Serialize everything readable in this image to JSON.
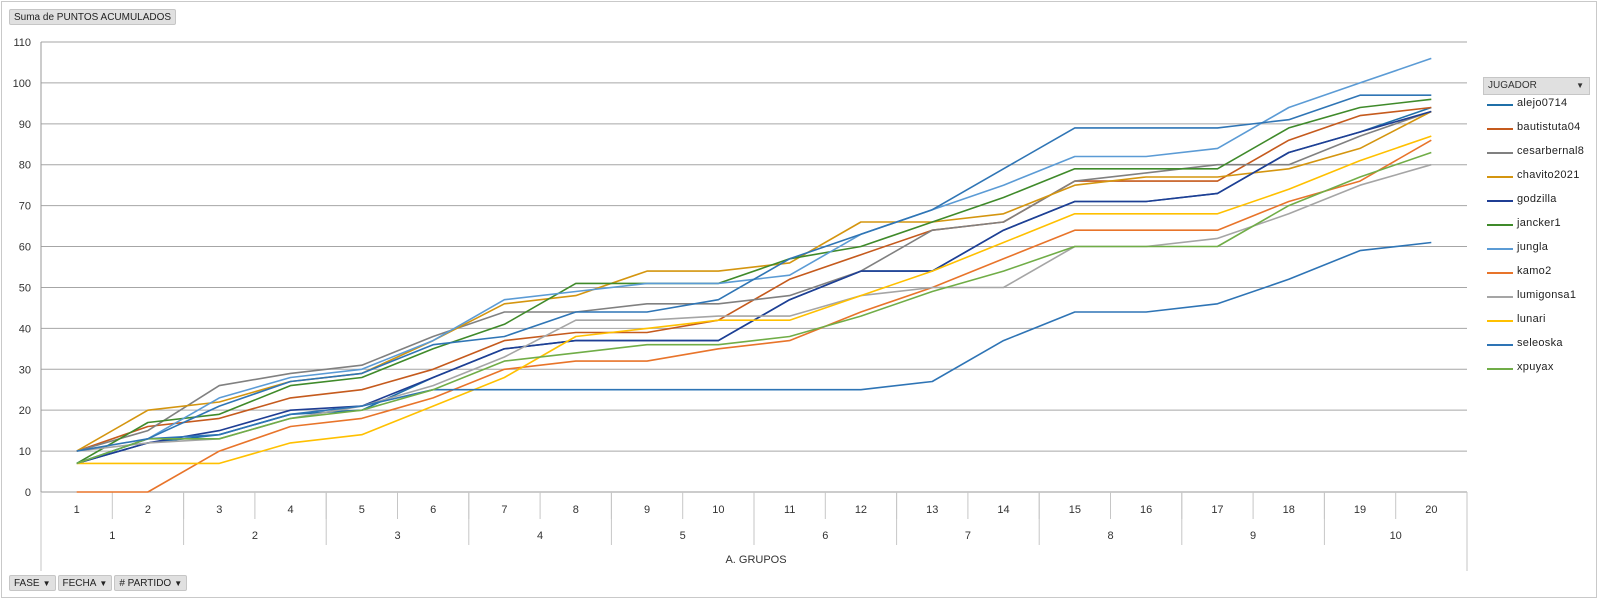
{
  "value_field": "Suma de PUNTOS ACUMULADOS",
  "legend_field": "JUGADOR",
  "filters": [
    {
      "label": "FASE",
      "icon": "filter-icon"
    },
    {
      "label": "FECHA",
      "icon": "chevron-down-icon"
    },
    {
      "label": "# PARTIDO",
      "icon": "chevron-down-icon"
    }
  ],
  "chart_data": {
    "type": "line",
    "title": "",
    "xlabel": "",
    "ylabel": "",
    "ylim": [
      0,
      110
    ],
    "yticks": [
      0,
      10,
      20,
      30,
      40,
      50,
      60,
      70,
      80,
      90,
      100,
      110
    ],
    "grid": true,
    "legend_position": "right",
    "categories": [
      "1",
      "2",
      "3",
      "4",
      "5",
      "6",
      "7",
      "8",
      "9",
      "10",
      "11",
      "12",
      "13",
      "14",
      "15",
      "16",
      "17",
      "18",
      "19",
      "20"
    ],
    "fecha_groups": [
      {
        "label": "1",
        "span": 2
      },
      {
        "label": "2",
        "span": 2
      },
      {
        "label": "3",
        "span": 2
      },
      {
        "label": "4",
        "span": 2
      },
      {
        "label": "5",
        "span": 2
      },
      {
        "label": "6",
        "span": 2
      },
      {
        "label": "7",
        "span": 2
      },
      {
        "label": "8",
        "span": 2
      },
      {
        "label": "9",
        "span": 2
      },
      {
        "label": "10",
        "span": 2
      }
    ],
    "fase_label": "A. GRUPOS",
    "series": [
      {
        "name": "alejo0714",
        "color": "#1f6fa8",
        "values": [
          7,
          12,
          14,
          19,
          20,
          28,
          35,
          37,
          37,
          37,
          47,
          54,
          54,
          64,
          71,
          71,
          73,
          83,
          88,
          94
        ]
      },
      {
        "name": "bautistuta04",
        "color": "#c55a1d",
        "values": [
          10,
          16,
          18,
          23,
          25,
          30,
          37,
          39,
          39,
          42,
          52,
          58,
          64,
          66,
          76,
          76,
          76,
          86,
          92,
          94
        ]
      },
      {
        "name": "cesarbernal8",
        "color": "#808080",
        "values": [
          10,
          15,
          26,
          29,
          31,
          38,
          44,
          44,
          46,
          46,
          48,
          54,
          64,
          66,
          76,
          78,
          80,
          80,
          87,
          93
        ]
      },
      {
        "name": "chavito2021",
        "color": "#d4950f",
        "values": [
          10,
          20,
          22,
          27,
          29,
          37,
          46,
          48,
          54,
          54,
          56,
          66,
          66,
          68,
          75,
          77,
          77,
          79,
          84,
          93
        ]
      },
      {
        "name": "godzilla",
        "color": "#1f3e94",
        "values": [
          7,
          12,
          15,
          20,
          21,
          28,
          35,
          37,
          37,
          37,
          47,
          54,
          54,
          64,
          71,
          71,
          73,
          83,
          88,
          93
        ]
      },
      {
        "name": "jancker1",
        "color": "#3f8a2a",
        "values": [
          7,
          17,
          19,
          26,
          28,
          35,
          41,
          51,
          51,
          51,
          57,
          60,
          66,
          72,
          79,
          79,
          79,
          89,
          94,
          96
        ]
      },
      {
        "name": "jungla",
        "color": "#5b9bd5",
        "values": [
          7,
          13,
          23,
          28,
          30,
          37,
          47,
          49,
          51,
          51,
          53,
          63,
          69,
          75,
          82,
          82,
          84,
          94,
          100,
          106
        ]
      },
      {
        "name": "kamo2",
        "color": "#e8742a",
        "values": [
          0,
          0,
          10,
          16,
          18,
          23,
          30,
          32,
          32,
          35,
          37,
          44,
          50,
          57,
          64,
          64,
          64,
          71,
          76,
          86
        ]
      },
      {
        "name": "lumigonsa1",
        "color": "#a5a5a5",
        "values": [
          10,
          12,
          13,
          18,
          21,
          26,
          33,
          42,
          42,
          43,
          43,
          48,
          50,
          50,
          60,
          60,
          62,
          68,
          75,
          80
        ]
      },
      {
        "name": "lunari",
        "color": "#ffc000",
        "values": [
          7,
          7,
          7,
          12,
          14,
          21,
          28,
          38,
          40,
          42,
          42,
          48,
          54,
          61,
          68,
          68,
          68,
          74,
          81,
          87
        ]
      },
      {
        "name": "seleoska",
        "color": "#2e74b5",
        "values": [
          7,
          13,
          14,
          19,
          21,
          25,
          25,
          25,
          25,
          25,
          25,
          25,
          27,
          37,
          44,
          44,
          46,
          52,
          59,
          61
        ]
      },
      {
        "name": "xpuyax",
        "color": "#70ad47",
        "values": [
          7,
          13,
          13,
          18,
          20,
          25,
          32,
          34,
          36,
          36,
          38,
          43,
          49,
          54,
          60,
          60,
          60,
          70,
          77,
          83
        ]
      },
      {
        "name": "",
        "color": "#2f75b5",
        "values": [
          10,
          13,
          21,
          27,
          29,
          36,
          38,
          44,
          44,
          47,
          57,
          63,
          69,
          79,
          89,
          89,
          89,
          91,
          97,
          97
        ]
      }
    ]
  }
}
